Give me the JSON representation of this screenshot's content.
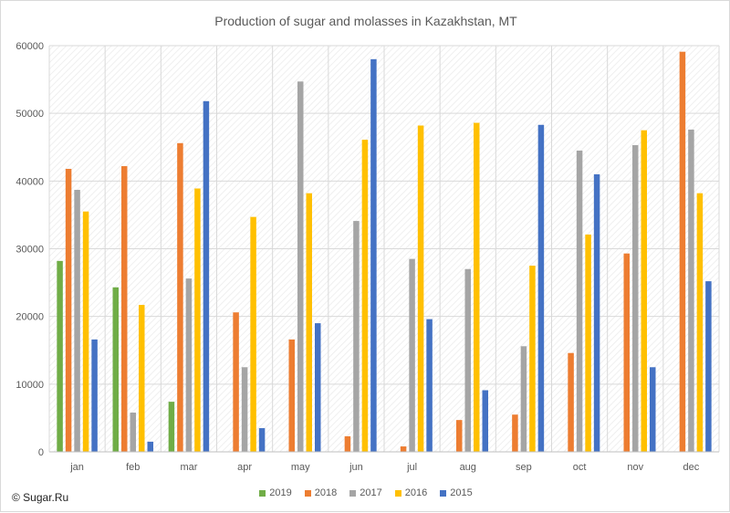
{
  "chart_data": {
    "type": "bar",
    "title": "Production of sugar and molasses in Kazakhstan, MT",
    "xlabel": "",
    "ylabel": "",
    "ylim": [
      0,
      60000
    ],
    "yticks": [
      0,
      10000,
      20000,
      30000,
      40000,
      50000,
      60000
    ],
    "grid": true,
    "legend_position": "bottom",
    "categories": [
      "jan",
      "feb",
      "mar",
      "apr",
      "may",
      "jun",
      "jul",
      "aug",
      "sep",
      "oct",
      "nov",
      "dec"
    ],
    "series": [
      {
        "name": "2019",
        "color": "#70ad47",
        "values": [
          28200,
          24300,
          7400,
          null,
          null,
          null,
          null,
          null,
          null,
          null,
          null,
          null
        ]
      },
      {
        "name": "2018",
        "color": "#ed7d31",
        "values": [
          41800,
          42200,
          45600,
          20600,
          16600,
          2300,
          800,
          4700,
          5500,
          14600,
          29300,
          59100
        ]
      },
      {
        "name": "2017",
        "color": "#a5a5a5",
        "values": [
          38700,
          5800,
          25600,
          12500,
          54700,
          34100,
          28500,
          27000,
          15600,
          44500,
          45300,
          47600
        ]
      },
      {
        "name": "2016",
        "color": "#ffc000",
        "values": [
          35500,
          21700,
          38900,
          34700,
          38200,
          46100,
          48200,
          48600,
          27500,
          32100,
          47500,
          38200
        ]
      },
      {
        "name": "2015",
        "color": "#4472c4",
        "values": [
          16600,
          1500,
          51800,
          3500,
          19000,
          58000,
          19600,
          9100,
          48300,
          41000,
          12500,
          25200
        ]
      }
    ]
  },
  "copyright": "© Sugar.Ru"
}
